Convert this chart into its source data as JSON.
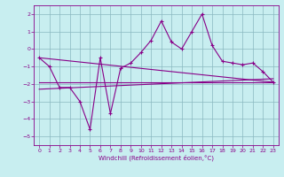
{
  "title": "",
  "xlabel": "Windchill (Refroidissement éolien,°C)",
  "bg_color": "#c8eef0",
  "grid_color": "#8ab8c0",
  "line_color": "#880088",
  "xlim": [
    -0.5,
    23.5
  ],
  "ylim": [
    -5.5,
    2.5
  ],
  "xticks": [
    0,
    1,
    2,
    3,
    4,
    5,
    6,
    7,
    8,
    9,
    10,
    11,
    12,
    13,
    14,
    15,
    16,
    17,
    18,
    19,
    20,
    21,
    22,
    23
  ],
  "yticks": [
    -5,
    -4,
    -3,
    -2,
    -1,
    0,
    1,
    2
  ],
  "line1_x": [
    0,
    1,
    2,
    3,
    4,
    5,
    6,
    7,
    8,
    9,
    10,
    11,
    12,
    13,
    14,
    15,
    16,
    17,
    18,
    19,
    20,
    21,
    22,
    23
  ],
  "line1_y": [
    -0.5,
    -1.0,
    -2.2,
    -2.2,
    -3.0,
    -4.6,
    -0.5,
    -3.7,
    -1.1,
    -0.8,
    -0.2,
    0.5,
    1.6,
    0.4,
    0.0,
    1.0,
    2.0,
    0.2,
    -0.7,
    -0.8,
    -0.9,
    -0.8,
    -1.3,
    -1.9
  ],
  "line2_x": [
    0,
    23
  ],
  "line2_y": [
    -1.9,
    -1.9
  ],
  "line3_x": [
    0,
    23
  ],
  "line3_y": [
    -0.5,
    -1.9
  ],
  "line4_x": [
    0,
    23
  ],
  "line4_y": [
    -2.3,
    -1.7
  ]
}
